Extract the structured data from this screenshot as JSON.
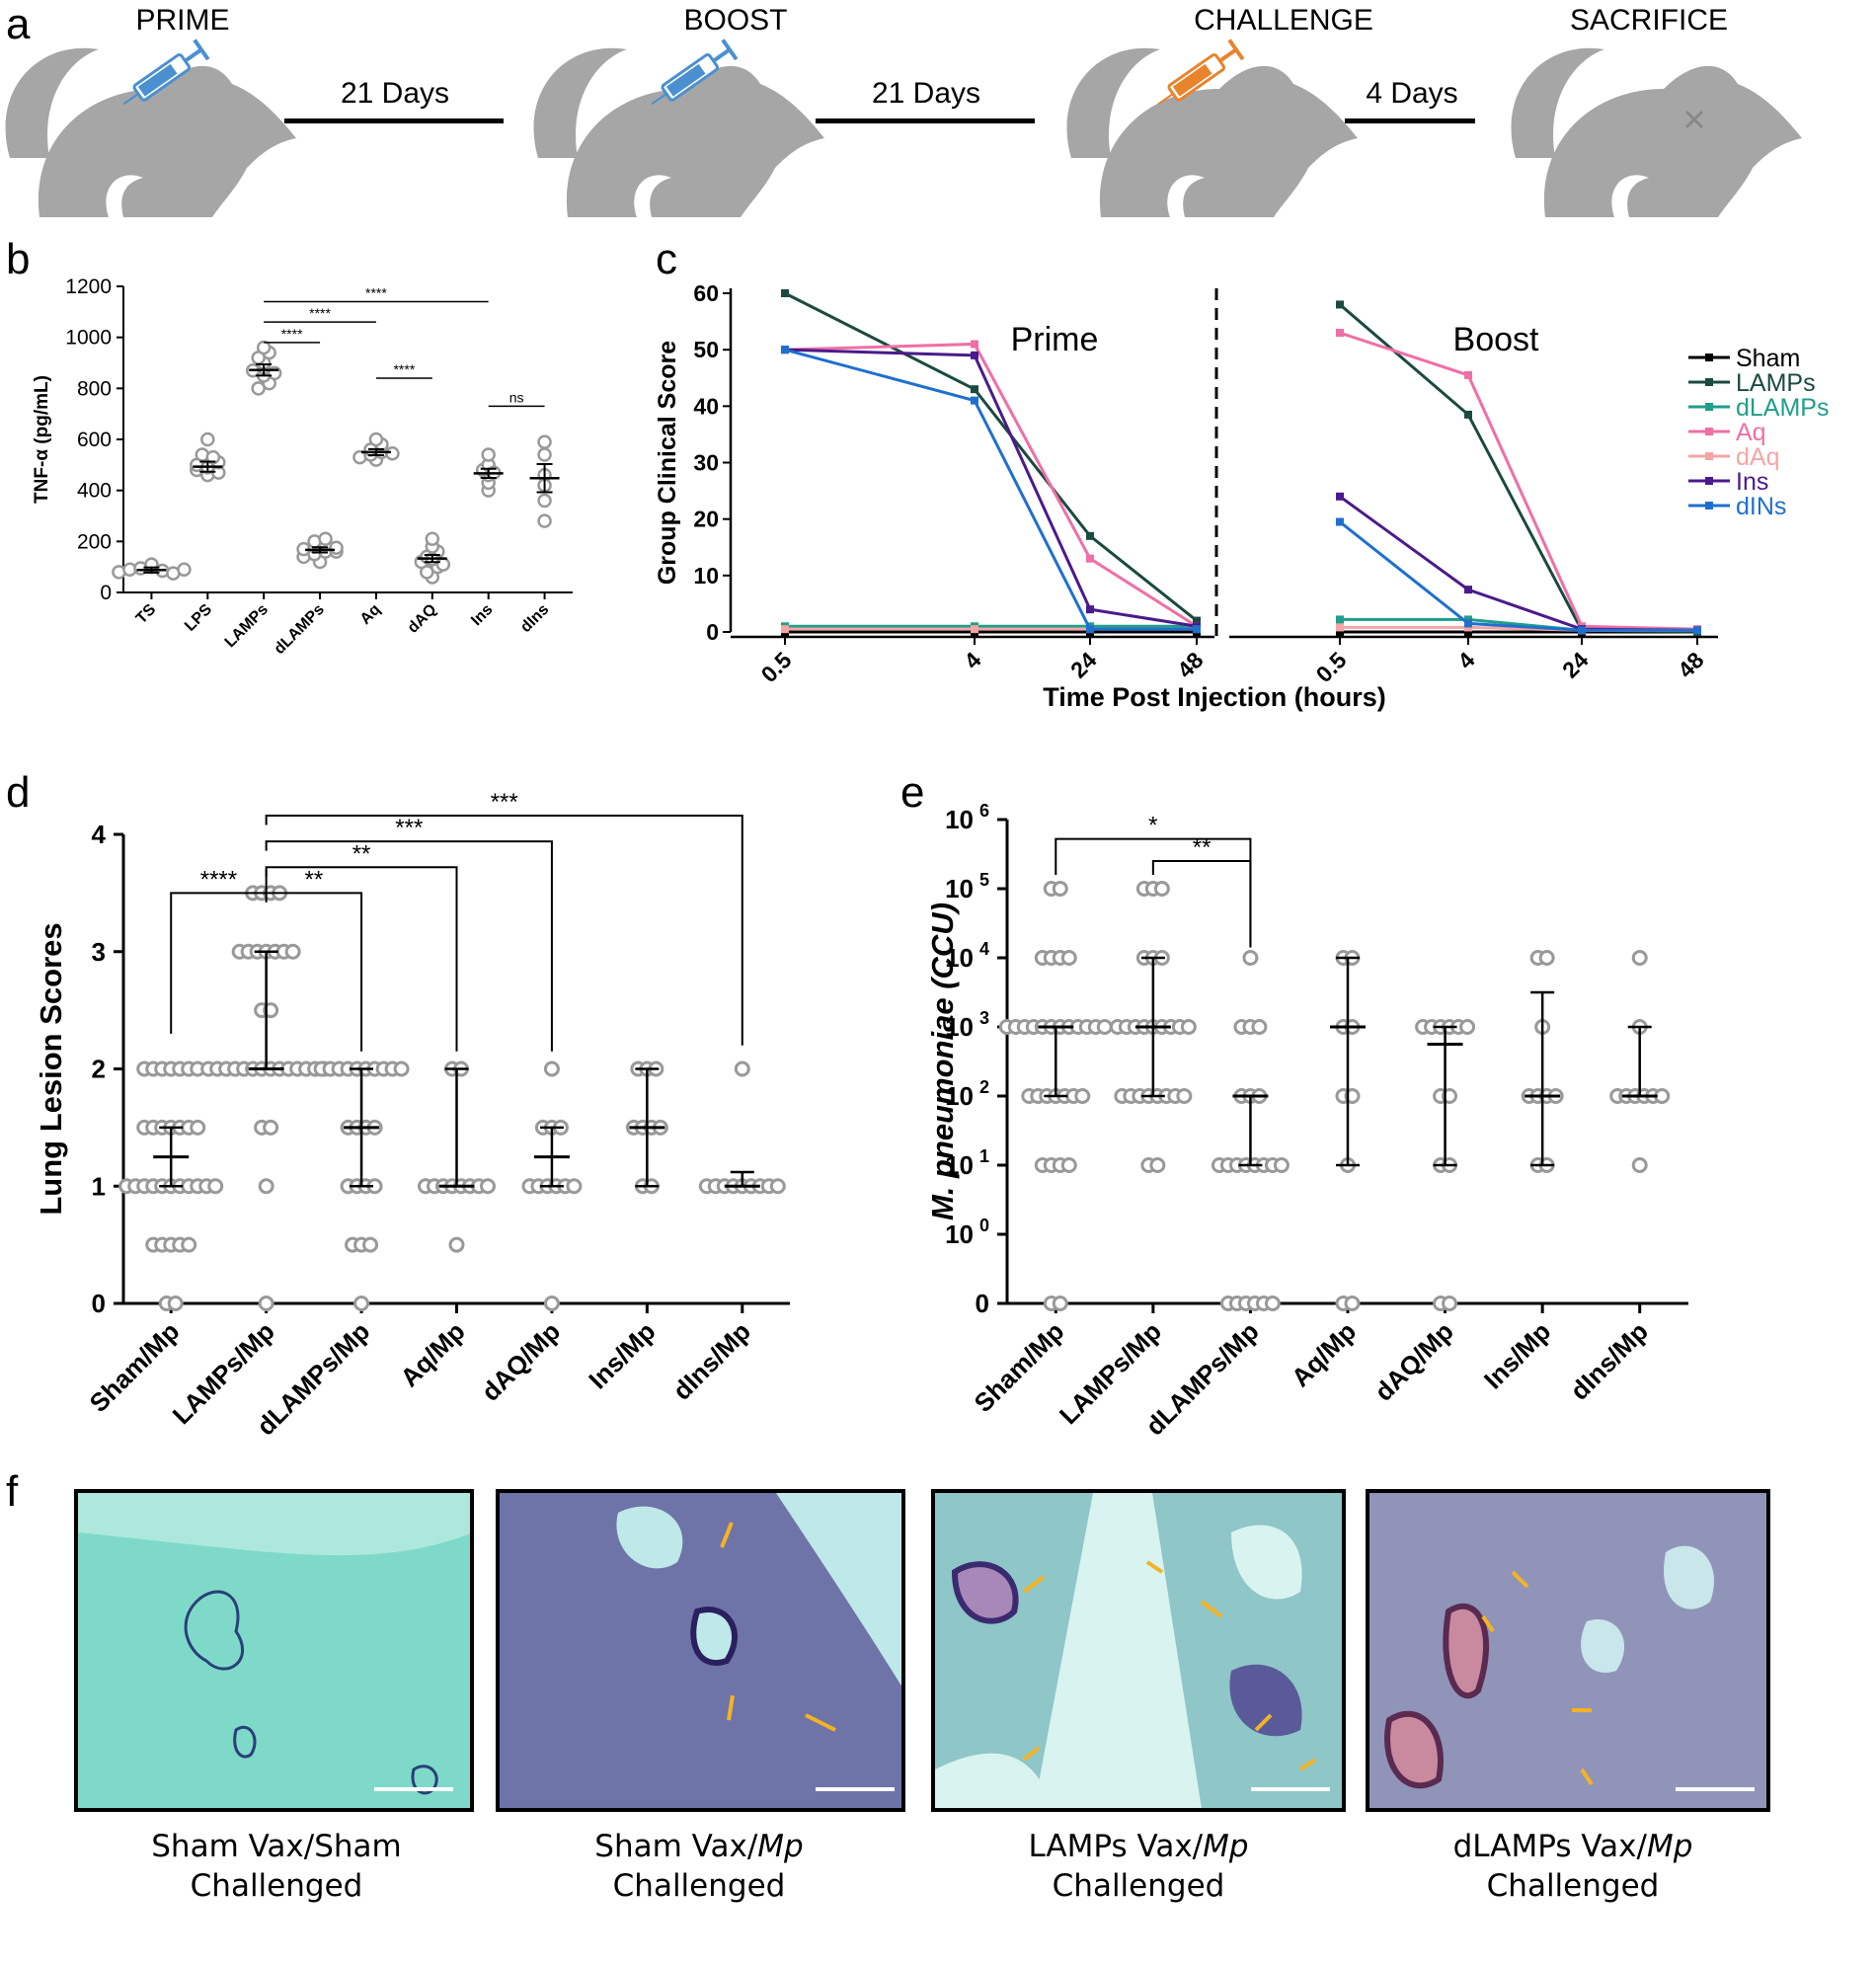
{
  "panel_labels": [
    "a",
    "b",
    "c",
    "d",
    "e",
    "f"
  ],
  "timeline": {
    "steps": [
      "PRIME",
      "BOOST",
      "CHALLENGE",
      "SACRIFICE"
    ],
    "intervals": [
      "21 Days",
      "21 Days",
      "4 Days"
    ],
    "colors": {
      "mouse": "#a6a6a6",
      "syringe_vax": "#4a90d0",
      "syringe_challenge": "#e8842c"
    }
  },
  "chart_data": [
    {
      "id": "b",
      "type": "scatter",
      "ylabel": "TNF-α (pg/mL)",
      "ylim": [
        0,
        1200
      ],
      "yticks": [
        0,
        200,
        400,
        600,
        800,
        1000,
        1200
      ],
      "categories": [
        "TS",
        "LPS",
        "LAMPs",
        "dLAMPs",
        "Aq",
        "dAQ",
        "Ins",
        "dIns"
      ],
      "points": [
        [
          80,
          90,
          95,
          100,
          85,
          110,
          75,
          90
        ],
        [
          460,
          480,
          500,
          520,
          540,
          490,
          470,
          510,
          600,
          530
        ],
        [
          800,
          820,
          850,
          870,
          880,
          900,
          920,
          940,
          960,
          860
        ],
        [
          120,
          140,
          150,
          160,
          170,
          180,
          190,
          200,
          210,
          160,
          175
        ],
        [
          520,
          530,
          540,
          550,
          560,
          580,
          600,
          545
        ],
        [
          60,
          80,
          100,
          120,
          140,
          160,
          180,
          210,
          130,
          110
        ],
        [
          400,
          430,
          460,
          480,
          500,
          540,
          470
        ],
        [
          280,
          360,
          460,
          540,
          590,
          420
        ]
      ],
      "mean": [
        88,
        493,
        872,
        167,
        550,
        133,
        467,
        448
      ],
      "sem": [
        10,
        20,
        22,
        10,
        12,
        14,
        18,
        55
      ],
      "comparisons": [
        {
          "from": 2,
          "to": 3,
          "label": "****",
          "y": 980
        },
        {
          "from": 2,
          "to": 4,
          "label": "****",
          "y": 1060
        },
        {
          "from": 2,
          "to": 6,
          "label": "****",
          "y": 1140
        },
        {
          "from": 4,
          "to": 5,
          "label": "****",
          "y": 840
        },
        {
          "from": 6,
          "to": 7,
          "label": "ns",
          "y": 730
        }
      ]
    },
    {
      "id": "c",
      "type": "line",
      "ylabel": "Group Clinical Score",
      "xlabel": "Time Post Injection (hours)",
      "ylim": [
        0,
        60
      ],
      "yticks": [
        0,
        10,
        20,
        30,
        40,
        50,
        60
      ],
      "x": [
        "0.5",
        "4",
        "24",
        "48"
      ],
      "phase_labels": [
        "Prime",
        "Boost"
      ],
      "series": [
        {
          "name": "Sham",
          "color": "#000000",
          "prime": [
            0,
            0,
            0,
            0
          ],
          "boost": [
            0,
            0,
            0,
            0
          ]
        },
        {
          "name": "LAMPs",
          "color": "#1a4a40",
          "prime": [
            60,
            43,
            17,
            2
          ],
          "boost": [
            58,
            38.5,
            0.3,
            0
          ]
        },
        {
          "name": "dLAMPs",
          "color": "#1f9e89",
          "prime": [
            1,
            1,
            1,
            1
          ],
          "boost": [
            2.2,
            2.2,
            0.3,
            0.3
          ]
        },
        {
          "name": "Aq",
          "color": "#ef6fa6",
          "prime": [
            50,
            51,
            13,
            1
          ],
          "boost": [
            53,
            45.5,
            1,
            0.5
          ]
        },
        {
          "name": "dAq",
          "color": "#f4a6a6",
          "prime": [
            0.5,
            0.5,
            0.5,
            0.5
          ],
          "boost": [
            0.8,
            0.8,
            0.3,
            0.3
          ]
        },
        {
          "name": "Ins",
          "color": "#4b1a8c",
          "prime": [
            50,
            49,
            4,
            1
          ],
          "boost": [
            24,
            7.5,
            0.5,
            0.3
          ]
        },
        {
          "name": "dINs",
          "color": "#1f6fcf",
          "prime": [
            50,
            41,
            0.5,
            0.5
          ],
          "boost": [
            19.5,
            1.5,
            0.3,
            0.3
          ]
        }
      ]
    },
    {
      "id": "d",
      "type": "scatter",
      "ylabel": "Lung Lesion Scores",
      "ylim": [
        0,
        4
      ],
      "yticks": [
        0,
        1,
        2,
        3,
        4
      ],
      "categories": [
        "Sham/Mp",
        "LAMPs/Mp",
        "dLAMPs/Mp",
        "Aq/Mp",
        "dAQ/Mp",
        "Ins/Mp",
        "dIns/Mp"
      ],
      "points": [
        [
          0,
          0,
          0.5,
          0.5,
          0.5,
          0.5,
          0.5,
          1,
          1,
          1,
          1,
          1,
          1,
          1,
          1,
          1,
          1,
          1,
          1.5,
          1.5,
          1.5,
          1.5,
          1.5,
          1.5,
          1.5,
          2,
          2,
          2,
          2,
          2,
          2,
          2
        ],
        [
          0,
          1,
          1.5,
          1.5,
          2,
          2,
          2,
          2,
          2,
          2,
          2,
          2,
          2,
          2,
          2,
          2,
          2,
          2,
          2.5,
          2.5,
          3,
          3,
          3,
          3,
          3,
          3,
          3,
          3.5,
          3.5,
          3.5,
          3.5
        ],
        [
          0,
          0.5,
          0.5,
          0.5,
          1,
          1,
          1,
          1,
          1.5,
          1.5,
          1.5,
          1.5,
          2,
          2,
          2,
          2,
          2,
          2,
          2,
          2,
          2,
          2
        ],
        [
          0.5,
          1,
          1,
          1,
          1,
          1,
          1,
          1,
          1,
          2,
          2
        ],
        [
          0,
          1,
          1,
          1,
          1,
          1,
          1,
          1.5,
          1.5,
          1.5,
          2
        ],
        [
          1,
          1,
          1.5,
          1.5,
          1.5,
          1.5,
          2,
          2,
          2
        ],
        [
          1,
          1,
          1,
          1,
          1,
          1,
          1,
          1,
          1,
          2
        ]
      ],
      "median": [
        1.25,
        2,
        1.5,
        1,
        1.25,
        1.5,
        1
      ],
      "iqr": [
        [
          1,
          1.5
        ],
        [
          2,
          3
        ],
        [
          1,
          2
        ],
        [
          1,
          2
        ],
        [
          1,
          1.5
        ],
        [
          1,
          2
        ],
        [
          1,
          1.12
        ]
      ],
      "comparisons": [
        {
          "from": 0,
          "to": 1,
          "label": "****",
          "y": 3.5
        },
        {
          "from": 1,
          "to": 2,
          "label": "**",
          "y": 3.5
        },
        {
          "from": 1,
          "to": 3,
          "label": "**",
          "y": 3.72
        },
        {
          "from": 1,
          "to": 4,
          "label": "***",
          "y": 3.94
        },
        {
          "from": 1,
          "to": 6,
          "label": "***",
          "y": 4.16
        }
      ]
    },
    {
      "id": "e",
      "type": "scatter",
      "ylabel": "M. pneumoniae (CCU)",
      "yscale": "log",
      "yticks": [
        "0",
        "10^0",
        "10^1",
        "10^2",
        "10^3",
        "10^4",
        "10^5",
        "10^6"
      ],
      "categories": [
        "Sham/Mp",
        "LAMPs/Mp",
        "dLAMPs/Mp",
        "Aq/Mp",
        "dAQ/Mp",
        "Ins/Mp",
        "dIns/Mp"
      ],
      "points_log": [
        [
          "0",
          "0",
          1,
          1,
          1,
          1,
          2,
          2,
          2,
          2,
          2,
          2,
          2,
          3,
          3,
          3,
          3,
          3,
          3,
          3,
          3,
          3,
          3,
          3,
          3,
          4,
          4,
          4,
          4,
          5,
          5
        ],
        [
          1,
          1,
          2,
          2,
          2,
          2,
          2,
          2,
          2,
          2,
          3,
          3,
          3,
          3,
          3,
          3,
          3,
          3,
          3,
          4,
          4,
          4,
          5,
          5,
          5
        ],
        [
          "0",
          "0",
          "0",
          "0",
          "0",
          "0",
          1,
          1,
          1,
          1,
          1,
          1,
          1,
          1,
          2,
          2,
          2,
          3,
          3,
          3,
          4
        ],
        [
          "0",
          "0",
          1,
          2,
          2,
          3,
          3,
          4,
          4
        ],
        [
          "0",
          "0",
          1,
          1,
          2,
          2,
          3,
          3,
          3,
          3,
          3,
          3
        ],
        [
          1,
          1,
          2,
          2,
          2,
          2,
          3,
          4,
          4
        ],
        [
          1,
          2,
          2,
          2,
          2,
          2,
          2,
          3,
          4
        ]
      ],
      "median_log": [
        3,
        3,
        2,
        3,
        2.75,
        2,
        2
      ],
      "iqr_log": [
        [
          2,
          3
        ],
        [
          2,
          4
        ],
        [
          1,
          2
        ],
        [
          1,
          4
        ],
        [
          1,
          3
        ],
        [
          1,
          3.5
        ],
        [
          2,
          3
        ]
      ],
      "comparisons": [
        {
          "from": 0,
          "to": 2,
          "label": "*",
          "y": 5.72
        },
        {
          "from": 1,
          "to": 2,
          "label": "**",
          "y": 5.4
        }
      ]
    }
  ],
  "micrographs": [
    {
      "caption_line1": "Sham Vax/Sham",
      "caption_line2": "Challenged",
      "bg": "#7fd9c8"
    },
    {
      "caption_line1": "Sham Vax/",
      "caption_italic": "Mp",
      "caption_line2": "Challenged",
      "bg": "#6f74a8"
    },
    {
      "caption_line1": "LAMPs Vax/",
      "caption_italic": "Mp",
      "caption_line2": "Challenged",
      "bg": "#8fc6c8"
    },
    {
      "caption_line1": "dLAMPs Vax/",
      "caption_italic": "Mp",
      "caption_line2": "Challenged",
      "bg": "#8f94b8"
    }
  ]
}
